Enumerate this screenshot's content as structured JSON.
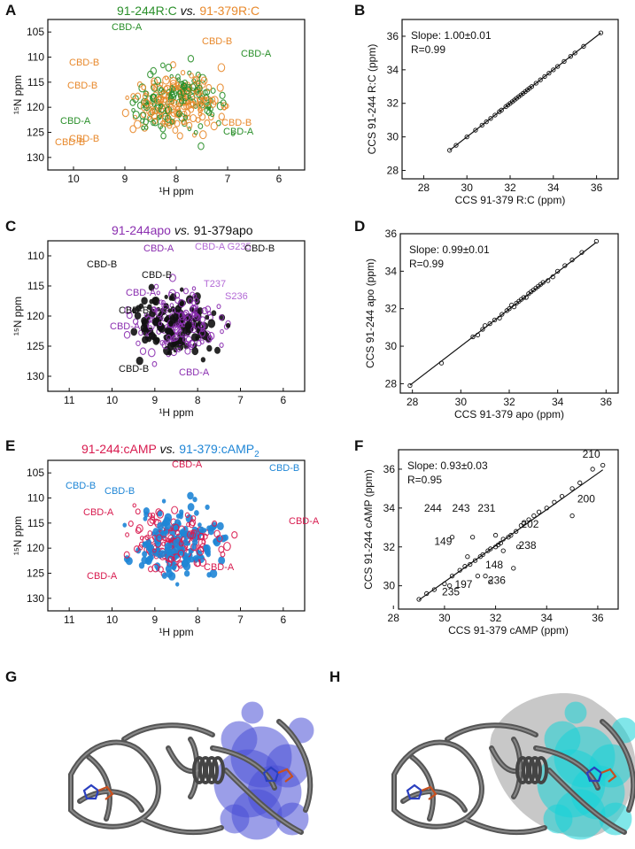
{
  "colors": {
    "green": "#2a8f2a",
    "orange": "#e8892c",
    "purple": "#8b2fb0",
    "violet": "#b36ad6",
    "red": "#d81b4f",
    "blue": "#1f86d6",
    "black": "#111111",
    "gray": "#5a5a5a",
    "blueSurf": "#4b50d6",
    "cyanSurf": "#19d3d8"
  },
  "panels": {
    "A": {
      "label": "A",
      "title_left": "91-244R:C",
      "title_sep": "vs.",
      "title_right": "91-379R:C",
      "xlabel": "¹H ppm",
      "ylabel": "¹⁵N ppm",
      "xticks": [
        "10",
        "9",
        "8",
        "7",
        "6"
      ],
      "yticks": [
        "105",
        "110",
        "115",
        "120",
        "125",
        "130"
      ],
      "annotations": [
        {
          "text": "CBD-A",
          "color": "green"
        },
        {
          "text": "CBD-B",
          "color": "orange"
        },
        {
          "text": "CBD-A",
          "color": "green"
        },
        {
          "text": "CBD-B",
          "color": "orange"
        },
        {
          "text": "CBD-B",
          "color": "orange"
        },
        {
          "text": "CBD-B",
          "color": "orange"
        },
        {
          "text": "CBD-A",
          "color": "green"
        },
        {
          "text": "CBD-B",
          "color": "orange"
        },
        {
          "text": "CBD-B",
          "color": "orange"
        },
        {
          "text": "CBD-A",
          "color": "green"
        }
      ]
    },
    "B": {
      "label": "B",
      "stat1": "Slope: 1.00±0.01",
      "stat2": "R=0.99",
      "xlabel": "CCS 91-379 R:C (ppm)",
      "ylabel": "CCS 91-244 R:C (ppm)",
      "xticks": [
        "28",
        "30",
        "32",
        "34",
        "36"
      ],
      "yticks": [
        "28",
        "30",
        "32",
        "34",
        "36"
      ]
    },
    "C": {
      "label": "C",
      "title_left": "91-244apo",
      "title_sep": "vs.",
      "title_right": "91-379apo",
      "xlabel": "¹H ppm",
      "ylabel": "¹⁵N ppm",
      "xticks": [
        "11",
        "10",
        "9",
        "8",
        "7",
        "6"
      ],
      "yticks": [
        "110",
        "115",
        "120",
        "125",
        "130"
      ],
      "annotations": [
        {
          "text": "CBD-A",
          "color": "purple"
        },
        {
          "text": "CBD-A G235",
          "color": "violet"
        },
        {
          "text": "CBD-B",
          "color": "black"
        },
        {
          "text": "CBD-B",
          "color": "black"
        },
        {
          "text": "CBD-B",
          "color": "black"
        },
        {
          "text": "T237",
          "color": "violet"
        },
        {
          "text": "CBD-A",
          "color": "purple"
        },
        {
          "text": "S236",
          "color": "violet"
        },
        {
          "text": "CBD-B",
          "color": "black"
        },
        {
          "text": "CBD-A",
          "color": "purple"
        },
        {
          "text": "CBD-B",
          "color": "black"
        },
        {
          "text": "CBD-A",
          "color": "purple"
        }
      ]
    },
    "D": {
      "label": "D",
      "stat1": "Slope: 0.99±0.01",
      "stat2": "R=0.99",
      "xlabel": "CCS 91-379 apo (ppm)",
      "ylabel": "CCS 91-244 apo (ppm)",
      "xticks": [
        "28",
        "30",
        "32",
        "34",
        "36"
      ],
      "yticks": [
        "28",
        "30",
        "32",
        "34",
        "36"
      ]
    },
    "E": {
      "label": "E",
      "title_left": "91-244:cAMP",
      "title_sep": "vs.",
      "title_right": "91-379:cAMP",
      "title_sub": "2",
      "xlabel": "¹H ppm",
      "ylabel": "¹⁵N ppm",
      "xticks": [
        "11",
        "10",
        "9",
        "8",
        "7",
        "6"
      ],
      "yticks": [
        "105",
        "110",
        "115",
        "120",
        "125",
        "130"
      ],
      "annotations": [
        {
          "text": "CBD-A",
          "color": "red"
        },
        {
          "text": "CBD-B",
          "color": "blue"
        },
        {
          "text": "CBD-B",
          "color": "blue"
        },
        {
          "text": "CBD-B",
          "color": "blue"
        },
        {
          "text": "CBD-A",
          "color": "red"
        },
        {
          "text": "CBD-A",
          "color": "red"
        },
        {
          "text": "CBD-A",
          "color": "red"
        },
        {
          "text": "CBD-A",
          "color": "red"
        }
      ]
    },
    "F": {
      "label": "F",
      "stat1": "Slope: 0.93±0.03",
      "stat2": "R=0.95",
      "xlabel": "CCS 91-379 cAMP (ppm)",
      "ylabel": "CCS 91-244 cAMP (ppm)",
      "xticks": [
        "28",
        "30",
        "32",
        "34",
        "36"
      ],
      "yticks": [
        "30",
        "32",
        "34",
        "36"
      ],
      "residue_labels": [
        "210",
        "200",
        "244",
        "243",
        "231",
        "202",
        "149",
        "238",
        "148",
        "197",
        "236",
        "235"
      ]
    },
    "G": {
      "label": "G"
    },
    "H": {
      "label": "H"
    }
  },
  "chart_data": [
    {
      "type": "scatter",
      "panel": "B",
      "xlim": [
        27,
        37
      ],
      "ylim": [
        27.5,
        37
      ],
      "fit": {
        "slope": 1.0,
        "intercept": 0.0
      },
      "x": [
        29.2,
        29.5,
        30.0,
        30.4,
        30.7,
        30.9,
        31.1,
        31.3,
        31.5,
        31.6,
        31.8,
        31.9,
        32.0,
        32.1,
        32.2,
        32.3,
        32.4,
        32.5,
        32.6,
        32.7,
        32.8,
        32.9,
        33.0,
        33.2,
        33.4,
        33.6,
        33.8,
        34.0,
        34.2,
        34.5,
        34.8,
        35.0,
        35.4,
        36.2
      ],
      "y": [
        29.2,
        29.5,
        30.0,
        30.4,
        30.7,
        30.9,
        31.1,
        31.3,
        31.5,
        31.6,
        31.8,
        31.9,
        32.0,
        32.1,
        32.2,
        32.3,
        32.4,
        32.5,
        32.6,
        32.7,
        32.8,
        32.9,
        33.0,
        33.2,
        33.4,
        33.6,
        33.8,
        34.0,
        34.2,
        34.5,
        34.8,
        35.0,
        35.4,
        36.2
      ]
    },
    {
      "type": "scatter",
      "panel": "D",
      "xlim": [
        27.5,
        36.5
      ],
      "ylim": [
        27.5,
        36
      ],
      "fit": {
        "slope": 0.99,
        "intercept": 0.3
      },
      "x": [
        27.9,
        29.2,
        30.5,
        30.7,
        30.9,
        31.0,
        31.2,
        31.4,
        31.6,
        31.7,
        31.9,
        32.0,
        32.1,
        32.2,
        32.3,
        32.4,
        32.5,
        32.6,
        32.7,
        32.8,
        32.9,
        33.0,
        33.1,
        33.2,
        33.3,
        33.4,
        33.6,
        33.8,
        34.0,
        34.3,
        34.6,
        35.0,
        35.6
      ],
      "y": [
        27.9,
        29.1,
        30.5,
        30.6,
        30.9,
        31.1,
        31.2,
        31.4,
        31.5,
        31.7,
        31.9,
        32.0,
        32.2,
        32.1,
        32.3,
        32.4,
        32.5,
        32.6,
        32.6,
        32.8,
        32.9,
        33.0,
        33.1,
        33.2,
        33.3,
        33.4,
        33.5,
        33.7,
        34.0,
        34.3,
        34.6,
        35.0,
        35.6
      ]
    },
    {
      "type": "scatter",
      "panel": "F",
      "xlim": [
        28.2,
        36.8
      ],
      "ylim": [
        28.8,
        37
      ],
      "fit": {
        "slope": 0.93,
        "intercept": 2.3
      },
      "x": [
        29.0,
        29.3,
        29.6,
        30.0,
        30.3,
        30.6,
        30.8,
        31.0,
        31.2,
        31.4,
        31.5,
        31.7,
        31.8,
        32.0,
        32.1,
        32.2,
        32.3,
        32.5,
        32.6,
        32.8,
        33.0,
        33.1,
        33.3,
        33.5,
        33.7,
        34.0,
        34.3,
        34.6,
        35.0,
        35.3,
        35.8,
        36.2,
        30.3,
        31.1,
        32.0,
        30.9,
        32.3,
        32.9,
        31.3,
        32.7,
        30.2,
        31.6,
        31.8,
        35.0
      ],
      "y": [
        29.3,
        29.6,
        29.8,
        30.1,
        30.5,
        30.8,
        31.0,
        31.1,
        31.3,
        31.5,
        31.6,
        31.8,
        31.9,
        32.0,
        32.1,
        32.2,
        32.4,
        32.5,
        32.6,
        32.8,
        33.1,
        33.2,
        33.4,
        33.6,
        33.8,
        34.0,
        34.3,
        34.6,
        35.0,
        35.3,
        36.0,
        36.2,
        32.5,
        32.5,
        32.6,
        31.5,
        31.8,
        32.0,
        30.5,
        30.9,
        30.0,
        30.5,
        30.2,
        33.6
      ]
    }
  ]
}
